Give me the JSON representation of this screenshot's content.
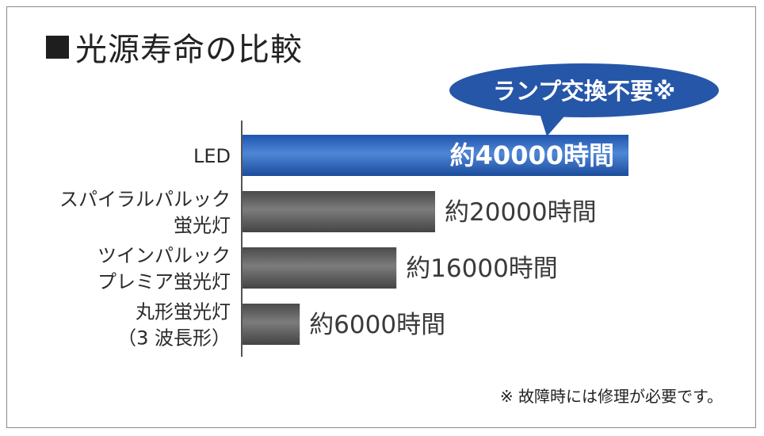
{
  "title": "光源寿命の比較",
  "callout": "ランプ交換不要※",
  "footnote": "※ 故障時には修理が必要です。",
  "colors": {
    "led_bar": "#2a63ba",
    "other_bar": "#5a5a5a",
    "callout_bg": "#2656a8"
  },
  "chart_data": {
    "type": "bar",
    "orientation": "horizontal",
    "title": "光源寿命の比較",
    "categories": [
      [
        "LED"
      ],
      [
        "スパイラルパルック",
        "蛍光灯"
      ],
      [
        "ツインパルック",
        "プレミア蛍光灯"
      ],
      [
        "丸形蛍光灯",
        "（3 波長形）"
      ]
    ],
    "values": [
      40000,
      20000,
      16000,
      6000
    ],
    "value_labels": [
      "約40000時間",
      "約20000時間",
      "約16000時間",
      "約6000時間"
    ],
    "unit": "時間",
    "xlim": [
      0,
      40000
    ],
    "grid": false
  }
}
